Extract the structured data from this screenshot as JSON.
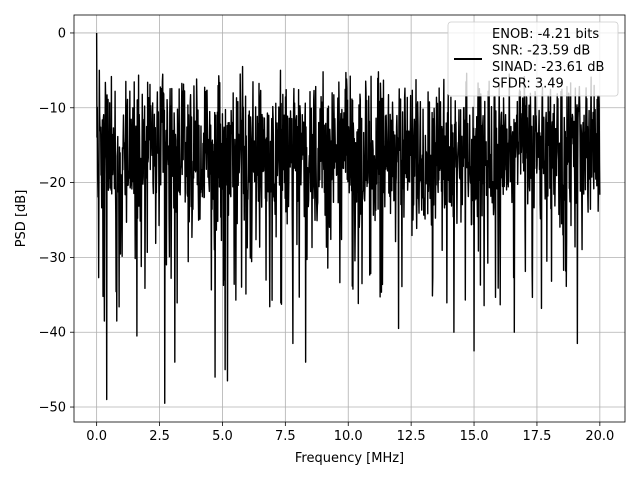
{
  "chart_data": {
    "type": "line",
    "title": "",
    "xlabel": "Frequency [MHz]",
    "ylabel": "PSD [dB]",
    "xlim": [
      -0.9,
      21.0
    ],
    "ylim": [
      -52,
      2.4
    ],
    "xticks": [
      0.0,
      2.5,
      5.0,
      7.5,
      10.0,
      12.5,
      15.0,
      17.5,
      20.0
    ],
    "xtick_labels": [
      "0.0",
      "2.5",
      "5.0",
      "7.5",
      "10.0",
      "12.5",
      "15.0",
      "17.5",
      "20.0"
    ],
    "yticks": [
      0,
      -10,
      -20,
      -30,
      -40,
      -50
    ],
    "ytick_labels": [
      "0",
      "−10",
      "−20",
      "−30",
      "−40",
      "−50"
    ],
    "grid": true,
    "legend_position": "top-right",
    "series": [
      {
        "name": "ENOB: -4.21 bits\nSNR: -23.59 dB\nSINAD: -23.61 dB\nSFDR: 3.49",
        "color": "#000000",
        "x_start": 0.0,
        "x_end": 20.0,
        "noise_floor_band": [
          -23,
          -9
        ],
        "dips": [
          {
            "x": 0.3,
            "y": -38.5
          },
          {
            "x": 0.4,
            "y": -49.0
          },
          {
            "x": 0.8,
            "y": -38.5
          },
          {
            "x": 1.6,
            "y": -40.5
          },
          {
            "x": 2.7,
            "y": -49.5
          },
          {
            "x": 3.1,
            "y": -44.0
          },
          {
            "x": 4.7,
            "y": -46.0
          },
          {
            "x": 5.1,
            "y": -45.0
          },
          {
            "x": 5.2,
            "y": -46.5
          },
          {
            "x": 7.8,
            "y": -41.5
          },
          {
            "x": 8.3,
            "y": -44.0
          },
          {
            "x": 9.0,
            "y": -41.5
          },
          {
            "x": 9.9,
            "y": -35.5
          },
          {
            "x": 12.0,
            "y": -39.5
          },
          {
            "x": 14.2,
            "y": -40.0
          },
          {
            "x": 15.0,
            "y": -42.5
          },
          {
            "x": 16.6,
            "y": -40.0
          },
          {
            "x": 19.1,
            "y": -41.5
          }
        ],
        "peaks": [
          {
            "x": 0.0,
            "y": 0.0
          },
          {
            "x": 0.1,
            "y": -5.0
          },
          {
            "x": 5.7,
            "y": -5.5
          },
          {
            "x": 5.8,
            "y": -4.5
          },
          {
            "x": 7.3,
            "y": -5.0
          },
          {
            "x": 9.0,
            "y": -5.2
          },
          {
            "x": 9.9,
            "y": -5.3
          },
          {
            "x": 10.9,
            "y": -5.8
          },
          {
            "x": 11.2,
            "y": -5.2
          },
          {
            "x": 14.7,
            "y": -5.4
          },
          {
            "x": 16.4,
            "y": -5.5
          }
        ]
      }
    ]
  }
}
